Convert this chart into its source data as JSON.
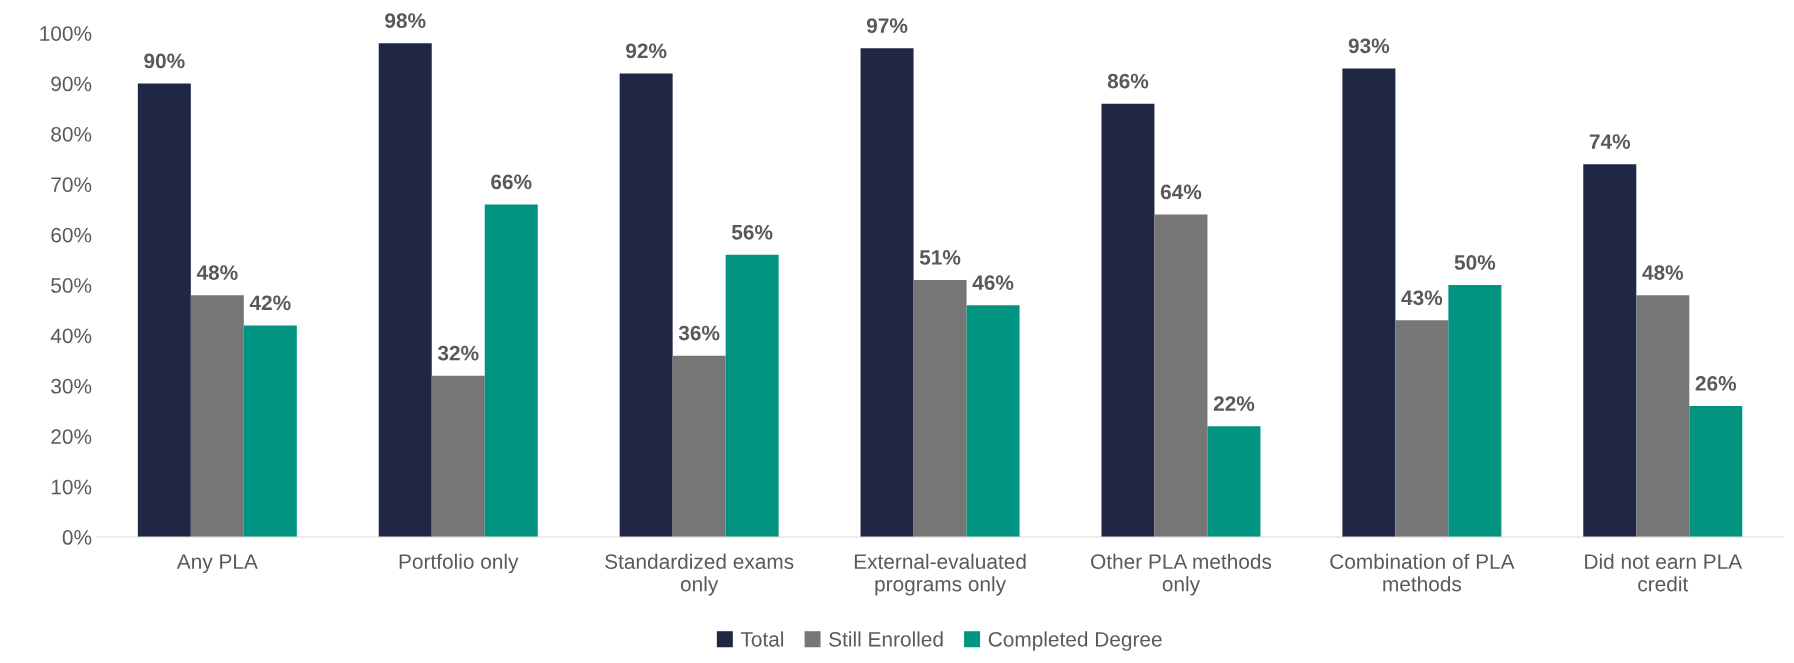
{
  "chart_data": {
    "type": "bar",
    "categories": [
      "Any PLA",
      "Portfolio only",
      "Standardized exams\nonly",
      "External-evaluated\nprograms only",
      "Other PLA methods\nonly",
      "Combination of PLA\nmethods",
      "Did not earn PLA\ncredit"
    ],
    "series": [
      {
        "name": "Total",
        "color": "#1f2744",
        "values": [
          90,
          98,
          92,
          97,
          86,
          93,
          74
        ],
        "value_labels": [
          "90%",
          "98%",
          "92%",
          "97%",
          "86%",
          "93%",
          "74%"
        ]
      },
      {
        "name": "Still Enrolled",
        "color": "#767676",
        "values": [
          48,
          32,
          36,
          51,
          64,
          43,
          48
        ],
        "value_labels": [
          "48%",
          "32%",
          "36%",
          "51%",
          "64%",
          "43%",
          "48%"
        ]
      },
      {
        "name": "Completed Degree",
        "color": "#009481",
        "values": [
          42,
          66,
          56,
          46,
          22,
          50,
          26
        ],
        "value_labels": [
          "42%",
          "66%",
          "56%",
          "46%",
          "22%",
          "50%",
          "26%"
        ]
      }
    ],
    "ylim": [
      0,
      100
    ],
    "yticks": [
      {
        "value": 0,
        "label": "0%"
      },
      {
        "value": 10,
        "label": "10%"
      },
      {
        "value": 20,
        "label": "20%"
      },
      {
        "value": 30,
        "label": "30%"
      },
      {
        "value": 40,
        "label": "40%"
      },
      {
        "value": 50,
        "label": "50%"
      },
      {
        "value": 60,
        "label": "60%"
      },
      {
        "value": 70,
        "label": "70%"
      },
      {
        "value": 80,
        "label": "80%"
      },
      {
        "value": 90,
        "label": "90%"
      },
      {
        "value": 100,
        "label": "100%"
      }
    ],
    "grid": false,
    "legend": "bottom"
  }
}
